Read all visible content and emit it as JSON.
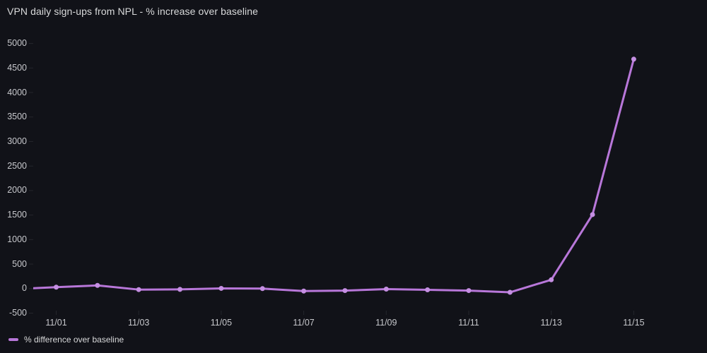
{
  "title": "VPN daily sign-ups from NPL - % increase over baseline",
  "legend": {
    "label": "% difference over baseline"
  },
  "colors": {
    "background": "#111218",
    "title_text": "#d8d9da",
    "tick_text": "#c7c8cc",
    "tick_mark": "#25262c",
    "line": "#b877d9",
    "point": "#c58fe2"
  },
  "chart_data": {
    "type": "line",
    "title": "VPN daily sign-ups from NPL - % increase over baseline",
    "xlabel": "",
    "ylabel": "",
    "categories": [
      "10/31",
      "11/01",
      "11/02",
      "11/03",
      "11/04",
      "11/05",
      "11/06",
      "11/07",
      "11/08",
      "11/09",
      "11/10",
      "11/11",
      "11/12",
      "11/13",
      "11/14",
      "11/15"
    ],
    "series": [
      {
        "name": "% difference over baseline",
        "values": [
          -10,
          30,
          65,
          -20,
          -15,
          5,
          0,
          -50,
          -40,
          -10,
          -25,
          -40,
          -75,
          180,
          1510,
          4680
        ]
      }
    ],
    "y_ticks": [
      5000,
      4500,
      4000,
      3500,
      3000,
      2500,
      2000,
      1500,
      1000,
      500,
      0,
      -500
    ],
    "x_tick_labels": [
      "11/01",
      "11/03",
      "11/05",
      "11/07",
      "11/09",
      "11/11",
      "11/13",
      "11/15"
    ],
    "ylim": [
      -500,
      5000
    ],
    "grid": false,
    "markers": true,
    "legend_position": "bottom-left",
    "first_point_clipped_at_left_edge": true
  }
}
